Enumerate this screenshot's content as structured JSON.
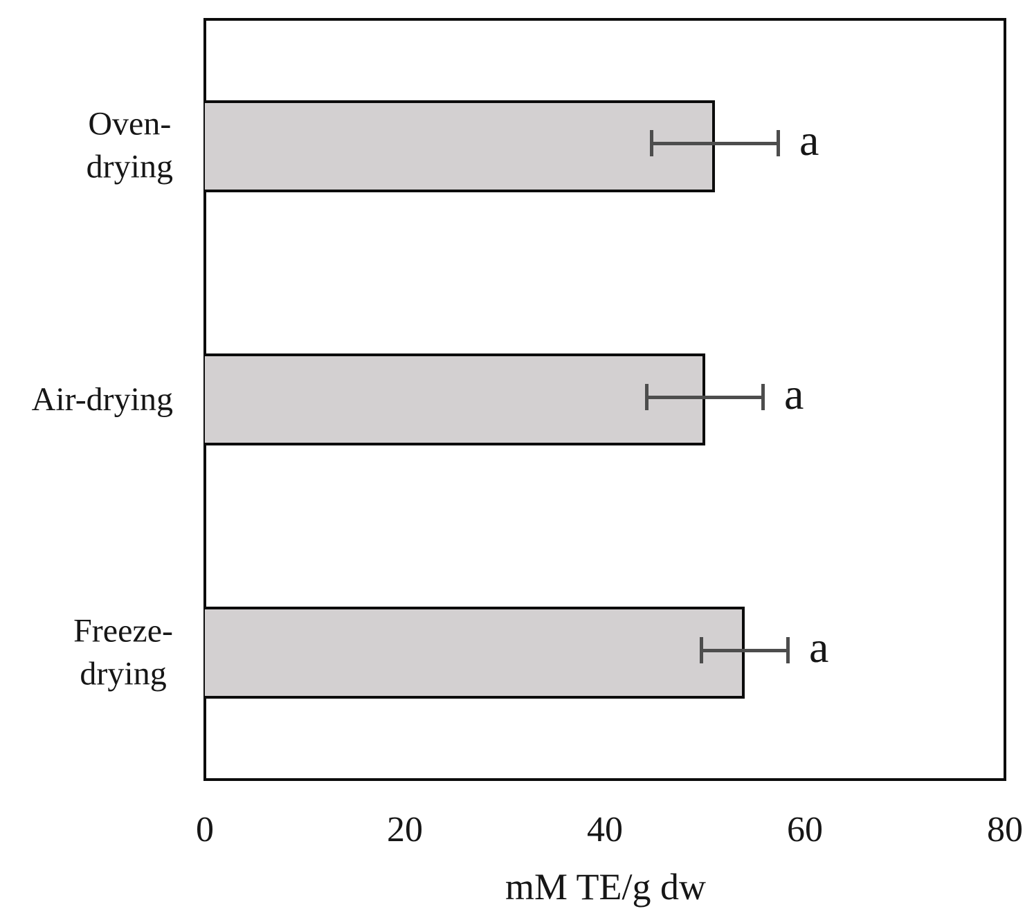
{
  "chart_data": {
    "type": "bar",
    "orientation": "horizontal",
    "title": "",
    "xlabel": "mM TE/g dw",
    "ylabel": "",
    "xlim": [
      0,
      80
    ],
    "x_ticks": [
      0,
      20,
      40,
      60,
      80
    ],
    "grid": false,
    "legend_position": "none",
    "categories": [
      "Oven-drying",
      "Air-drying",
      "Freeze-drying"
    ],
    "category_label_lines": [
      [
        "Oven-",
        "drying"
      ],
      [
        "Air-drying"
      ],
      [
        "Freeze-",
        "drying"
      ]
    ],
    "values": [
      51,
      50,
      54
    ],
    "error_bars_plus_minus": [
      6.5,
      6,
      4.5
    ],
    "sig_letters": [
      "a",
      "a",
      "a"
    ],
    "colors": {
      "bar_fill": "#d3d0d1",
      "bar_border": "#0c0c0c",
      "error_bar": "#4d4d4d",
      "text": "#161616",
      "background": "#ffffff"
    }
  }
}
